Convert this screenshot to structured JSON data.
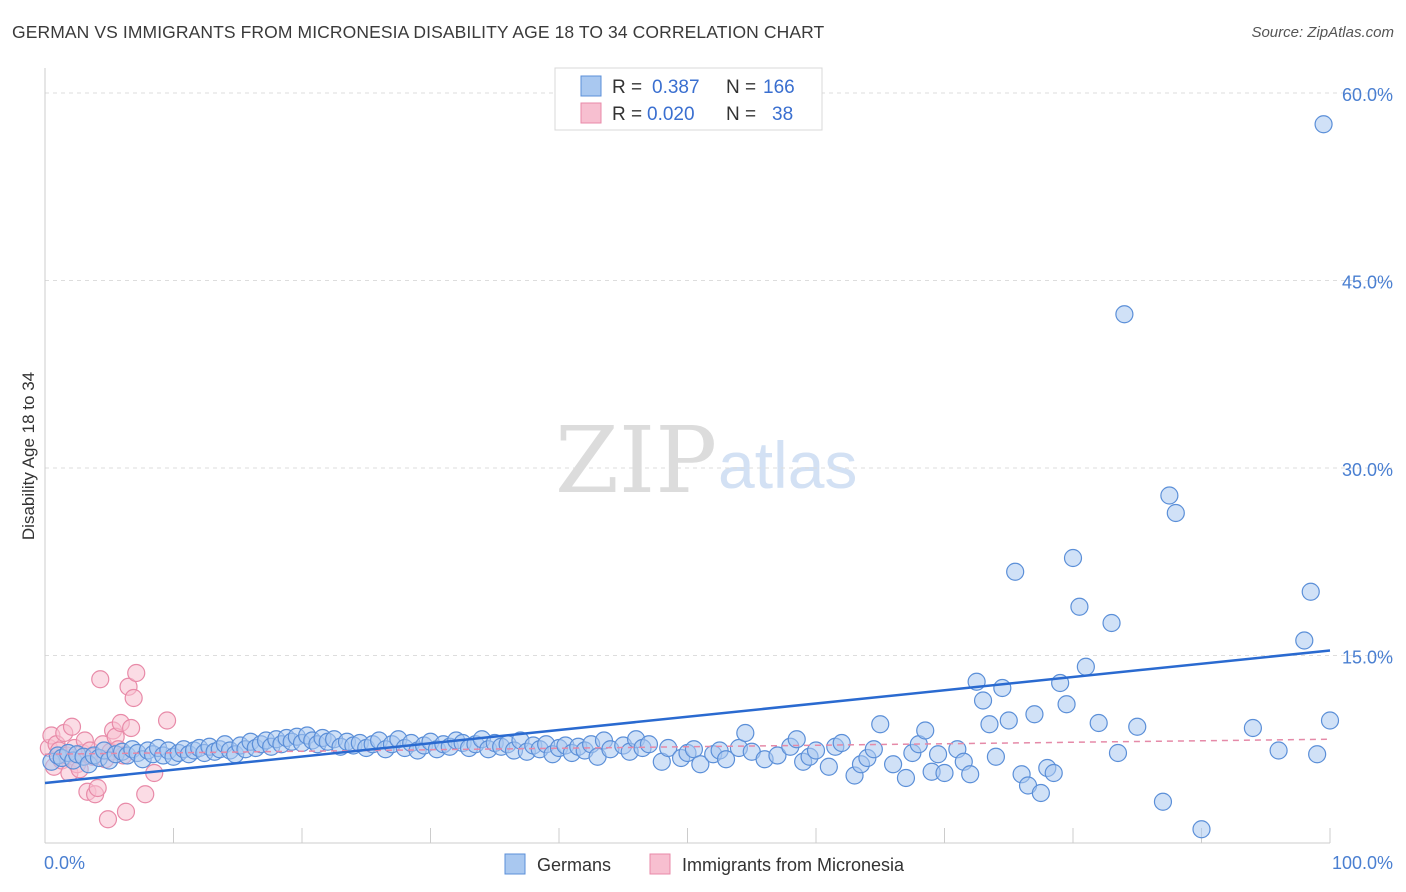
{
  "title": "GERMAN VS IMMIGRANTS FROM MICRONESIA DISABILITY AGE 18 TO 34 CORRELATION CHART",
  "source": "Source: ZipAtlas.com",
  "watermark": {
    "part1": "ZIP",
    "part2": "atlas"
  },
  "colors": {
    "blue_fill": "#a9c8f0",
    "blue_stroke": "#5b8fd8",
    "blue_line": "#2a6ad0",
    "pink_fill": "#f7bfd0",
    "pink_stroke": "#e88aa8",
    "pink_line": "#e58aa8",
    "grid": "#dddddd",
    "axis_text": "#4a7fd1"
  },
  "legend": {
    "row1": {
      "r_label": "R =",
      "r_value": "0.387",
      "n_label": "N =",
      "n_value": "166"
    },
    "row2": {
      "r_label": "R =",
      "r_value": "0.020",
      "n_label": "N =",
      "n_value": "38"
    }
  },
  "chart_data": {
    "type": "scatter",
    "xlabel": "",
    "ylabel": "Disability Age 18 to 34",
    "xlim": [
      0,
      100
    ],
    "ylim": [
      0,
      62
    ],
    "x_tick_labels": [
      {
        "value": 0,
        "label": "0.0%"
      },
      {
        "value": 100,
        "label": "100.0%"
      }
    ],
    "y_tick_labels": [
      {
        "value": 15,
        "label": "15.0%"
      },
      {
        "value": 30,
        "label": "30.0%"
      },
      {
        "value": 45,
        "label": "45.0%"
      },
      {
        "value": 60,
        "label": "60.0%"
      }
    ],
    "grid": "horizontal dashed",
    "legend_position": "top-center",
    "series": [
      {
        "name": "Germans",
        "color": "#a9c8f0",
        "trendline": {
          "x": [
            0,
            100
          ],
          "y": [
            4.8,
            15.4
          ]
        },
        "points": [
          [
            0.5,
            6.5
          ],
          [
            1,
            7
          ],
          [
            1.3,
            6.8
          ],
          [
            1.8,
            7.2
          ],
          [
            2.2,
            6.6
          ],
          [
            2.5,
            7.1
          ],
          [
            3,
            6.9
          ],
          [
            3.4,
            6.3
          ],
          [
            3.8,
            7
          ],
          [
            4.2,
            6.8
          ],
          [
            4.6,
            7.4
          ],
          [
            5,
            6.6
          ],
          [
            5.5,
            7.1
          ],
          [
            6,
            7.3
          ],
          [
            6.4,
            7
          ],
          [
            6.8,
            7.5
          ],
          [
            7.2,
            7.2
          ],
          [
            7.6,
            6.7
          ],
          [
            8,
            7.4
          ],
          [
            8.4,
            7.1
          ],
          [
            8.8,
            7.6
          ],
          [
            9.2,
            7
          ],
          [
            9.6,
            7.4
          ],
          [
            10,
            6.9
          ],
          [
            10.4,
            7.2
          ],
          [
            10.8,
            7.5
          ],
          [
            11.2,
            7.1
          ],
          [
            11.6,
            7.4
          ],
          [
            12,
            7.6
          ],
          [
            12.4,
            7.2
          ],
          [
            12.8,
            7.7
          ],
          [
            13.2,
            7.3
          ],
          [
            13.6,
            7.5
          ],
          [
            14,
            7.9
          ],
          [
            14.4,
            7.4
          ],
          [
            14.8,
            7.1
          ],
          [
            15.2,
            7.8
          ],
          [
            15.6,
            7.5
          ],
          [
            16,
            8.1
          ],
          [
            16.4,
            7.6
          ],
          [
            16.8,
            7.9
          ],
          [
            17.2,
            8.2
          ],
          [
            17.6,
            7.7
          ],
          [
            18,
            8.3
          ],
          [
            18.4,
            7.9
          ],
          [
            18.8,
            8.4
          ],
          [
            19.2,
            8.1
          ],
          [
            19.6,
            8.5
          ],
          [
            20,
            8
          ],
          [
            20.4,
            8.6
          ],
          [
            20.8,
            8.2
          ],
          [
            21.2,
            7.9
          ],
          [
            21.6,
            8.4
          ],
          [
            22,
            8.1
          ],
          [
            22.5,
            8.3
          ],
          [
            23,
            7.7
          ],
          [
            23.5,
            8.1
          ],
          [
            24,
            7.8
          ],
          [
            24.5,
            8
          ],
          [
            25,
            7.6
          ],
          [
            25.5,
            7.9
          ],
          [
            26,
            8.2
          ],
          [
            26.5,
            7.5
          ],
          [
            27,
            7.9
          ],
          [
            27.5,
            8.3
          ],
          [
            28,
            7.6
          ],
          [
            28.5,
            8
          ],
          [
            29,
            7.4
          ],
          [
            29.5,
            7.8
          ],
          [
            30,
            8.1
          ],
          [
            30.5,
            7.5
          ],
          [
            31,
            7.9
          ],
          [
            31.5,
            7.7
          ],
          [
            32,
            8.2
          ],
          [
            32.5,
            8
          ],
          [
            33,
            7.6
          ],
          [
            33.5,
            7.9
          ],
          [
            34,
            8.3
          ],
          [
            34.5,
            7.5
          ],
          [
            35,
            8
          ],
          [
            35.5,
            7.7
          ],
          [
            36,
            7.9
          ],
          [
            36.5,
            7.4
          ],
          [
            37,
            8.2
          ],
          [
            37.5,
            7.3
          ],
          [
            38,
            7.8
          ],
          [
            38.5,
            7.5
          ],
          [
            39,
            7.9
          ],
          [
            39.5,
            7.1
          ],
          [
            40,
            7.6
          ],
          [
            40.5,
            7.8
          ],
          [
            41,
            7.2
          ],
          [
            41.5,
            7.7
          ],
          [
            42,
            7.4
          ],
          [
            42.5,
            7.9
          ],
          [
            43,
            6.9
          ],
          [
            43.5,
            8.2
          ],
          [
            44,
            7.5
          ],
          [
            45,
            7.8
          ],
          [
            45.5,
            7.3
          ],
          [
            46,
            8.3
          ],
          [
            46.5,
            7.6
          ],
          [
            47,
            7.9
          ],
          [
            48,
            6.5
          ],
          [
            48.5,
            7.6
          ],
          [
            49.5,
            6.8
          ],
          [
            50,
            7.2
          ],
          [
            50.5,
            7.5
          ],
          [
            51,
            6.3
          ],
          [
            52,
            7.1
          ],
          [
            52.5,
            7.4
          ],
          [
            53,
            6.7
          ],
          [
            54,
            7.6
          ],
          [
            54.5,
            8.8
          ],
          [
            55,
            7.3
          ],
          [
            56,
            6.7
          ],
          [
            57,
            7
          ],
          [
            58,
            7.7
          ],
          [
            58.5,
            8.3
          ],
          [
            59,
            6.5
          ],
          [
            59.5,
            6.9
          ],
          [
            60,
            7.4
          ],
          [
            61,
            6.1
          ],
          [
            61.5,
            7.7
          ],
          [
            62,
            8
          ],
          [
            63,
            5.4
          ],
          [
            63.5,
            6.3
          ],
          [
            64,
            6.8
          ],
          [
            64.5,
            7.5
          ],
          [
            65,
            9.5
          ],
          [
            66,
            6.3
          ],
          [
            67,
            5.2
          ],
          [
            67.5,
            7.2
          ],
          [
            68,
            7.9
          ],
          [
            68.5,
            9
          ],
          [
            69,
            5.7
          ],
          [
            69.5,
            7.1
          ],
          [
            70,
            5.6
          ],
          [
            71,
            7.5
          ],
          [
            71.5,
            6.5
          ],
          [
            72,
            5.5
          ],
          [
            72.5,
            12.9
          ],
          [
            73,
            11.4
          ],
          [
            73.5,
            9.5
          ],
          [
            74,
            6.9
          ],
          [
            74.5,
            12.4
          ],
          [
            75,
            9.8
          ],
          [
            75.5,
            21.7
          ],
          [
            76,
            5.5
          ],
          [
            76.5,
            4.6
          ],
          [
            77,
            10.3
          ],
          [
            77.5,
            4
          ],
          [
            78,
            6
          ],
          [
            78.5,
            5.6
          ],
          [
            79,
            12.8
          ],
          [
            79.5,
            11.1
          ],
          [
            80,
            22.8
          ],
          [
            80.5,
            18.9
          ],
          [
            81,
            14.1
          ],
          [
            82,
            9.6
          ],
          [
            83,
            17.6
          ],
          [
            83.5,
            7.2
          ],
          [
            84,
            42.3
          ],
          [
            85,
            9.3
          ],
          [
            87,
            3.3
          ],
          [
            87.5,
            27.8
          ],
          [
            88,
            26.4
          ],
          [
            90,
            1.1
          ],
          [
            94,
            9.2
          ],
          [
            96,
            7.4
          ],
          [
            98,
            16.2
          ],
          [
            98.5,
            20.1
          ],
          [
            99,
            7.1
          ],
          [
            99.5,
            57.5
          ],
          [
            100,
            9.8
          ]
        ]
      },
      {
        "name": "Immigrants from Micronesia",
        "color": "#f7bfd0",
        "trendline": {
          "x": [
            0,
            100
          ],
          "y": [
            7.1,
            8.3
          ]
        },
        "points": [
          [
            0.3,
            7.6
          ],
          [
            0.5,
            8.6
          ],
          [
            0.7,
            6.1
          ],
          [
            0.9,
            7.9
          ],
          [
            1.1,
            7.4
          ],
          [
            1.3,
            6.6
          ],
          [
            1.5,
            8.8
          ],
          [
            1.7,
            7
          ],
          [
            1.9,
            5.6
          ],
          [
            2.1,
            9.3
          ],
          [
            2.3,
            7.6
          ],
          [
            2.5,
            6.3
          ],
          [
            2.7,
            5.9
          ],
          [
            2.9,
            7.2
          ],
          [
            3.1,
            8.2
          ],
          [
            3.3,
            4.1
          ],
          [
            3.5,
            7.4
          ],
          [
            3.7,
            6.9
          ],
          [
            3.9,
            3.9
          ],
          [
            4.1,
            4.4
          ],
          [
            4.3,
            13.1
          ],
          [
            4.5,
            7.9
          ],
          [
            4.7,
            6.7
          ],
          [
            4.9,
            1.9
          ],
          [
            5.1,
            7.3
          ],
          [
            5.3,
            9
          ],
          [
            5.5,
            8.5
          ],
          [
            5.7,
            7.5
          ],
          [
            5.9,
            9.6
          ],
          [
            6.1,
            7
          ],
          [
            6.3,
            2.5
          ],
          [
            6.5,
            12.5
          ],
          [
            6.7,
            9.2
          ],
          [
            6.9,
            11.6
          ],
          [
            7.1,
            13.6
          ],
          [
            7.8,
            3.9
          ],
          [
            8.5,
            5.6
          ],
          [
            9.5,
            9.8
          ]
        ]
      }
    ]
  },
  "bottom_legend": {
    "germans": "Germans",
    "micronesia": "Immigrants from Micronesia"
  }
}
